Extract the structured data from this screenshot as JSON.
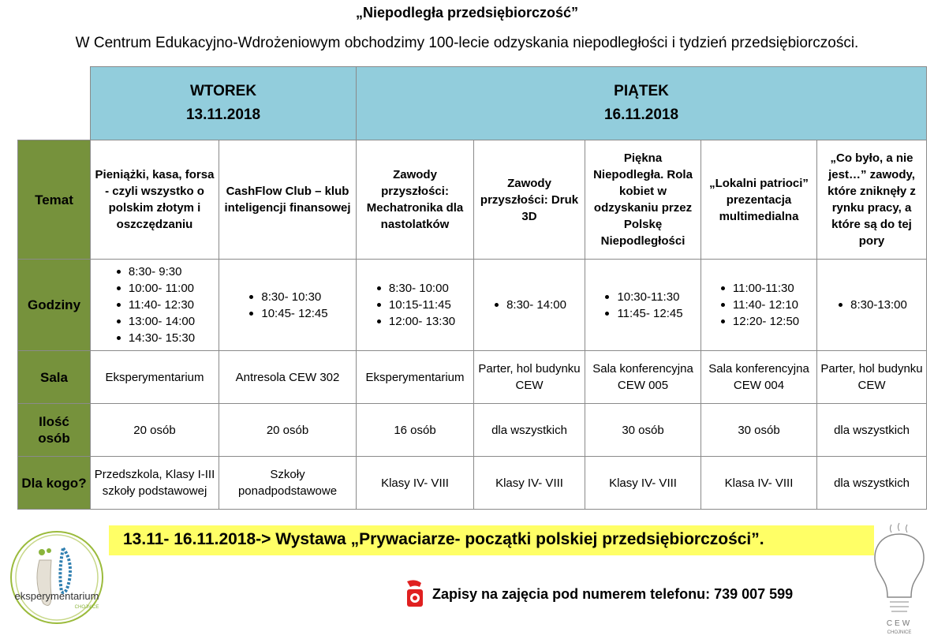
{
  "title": "„Niepodległa przedsiębiorczość”",
  "subtitle": "W Centrum Edukacyjno-Wdrożeniowym obchodzimy 100-lecie odzyskania niepodległości i tydzień przedsiębiorczości.",
  "colors": {
    "header_bg": "#92cddc",
    "label_bg": "#76923c",
    "banner_bg": "#ffff66"
  },
  "days": [
    {
      "name": "WTOREK",
      "date": "13.11.2018"
    },
    {
      "name": "PIĄTEK",
      "date": "16.11.2018"
    }
  ],
  "row_labels": {
    "topic": "Temat",
    "hours": "Godziny",
    "room": "Sala",
    "count": "Ilość osób",
    "audience": "Dla kogo?"
  },
  "events": [
    {
      "topic": "Pieniążki, kasa, forsa - czyli wszystko o polskim złotym i oszczędzaniu",
      "hours": [
        "8:30- 9:30",
        "10:00- 11:00",
        "11:40- 12:30",
        "13:00- 14:00",
        "14:30- 15:30"
      ],
      "room": "Eksperymentarium",
      "count": "20 osób",
      "audience": "Przedszkola, Klasy I-III szkoły podstawowej"
    },
    {
      "topic": "CashFlow Club – klub inteligencji finansowej",
      "hours": [
        "8:30- 10:30",
        "10:45- 12:45"
      ],
      "room": "Antresola CEW 302",
      "count": "20 osób",
      "audience": "Szkoły ponadpodstawowe"
    },
    {
      "topic": "Zawody przyszłości: Mechatronika dla nastolatków",
      "hours": [
        "8:30- 10:00",
        "10:15-11:45",
        "12:00- 13:30"
      ],
      "room": "Eksperymentarium",
      "count": "16 osób",
      "audience": "Klasy  IV- VIII"
    },
    {
      "topic": "Zawody przyszłości: Druk 3D",
      "hours": [
        "8:30- 14:00"
      ],
      "room": "Parter, hol budynku CEW",
      "count": "dla wszystkich",
      "audience": "Klasy IV- VIII"
    },
    {
      "topic": "Piękna Niepodległa. Rola kobiet w odzyskaniu przez Polskę Niepodległości",
      "hours": [
        "10:30-11:30",
        "11:45- 12:45"
      ],
      "room": "Sala konferencyjna CEW 005",
      "count": "30 osób",
      "audience": "Klasy IV- VIII"
    },
    {
      "topic": "„Lokalni patrioci” prezentacja multimedialna",
      "hours": [
        "11:00-11:30",
        "11:40- 12:10",
        "12:20- 12:50"
      ],
      "room": "Sala konferencyjna CEW 004",
      "count": "30 osób",
      "audience": "Klasa IV- VIII"
    },
    {
      "topic": "„Co było, a nie jest…” zawody, które zniknęły z rynku pracy, a które są do tej pory",
      "hours": [
        "8:30-13:00"
      ],
      "room": "Parter, hol budynku CEW",
      "count": "dla wszystkich",
      "audience": "dla wszystkich"
    }
  ],
  "banner": "13.11- 16.11.2018-> Wystawa „Prywaciarze- początki polskiej przedsiębiorczości”.",
  "phone_text": "Zapisy na zajęcia pod numerem telefonu: 739 007 599",
  "logos": {
    "left": "eksperymentarium CHOJNICE",
    "right": "CEW CHOJNICE"
  }
}
